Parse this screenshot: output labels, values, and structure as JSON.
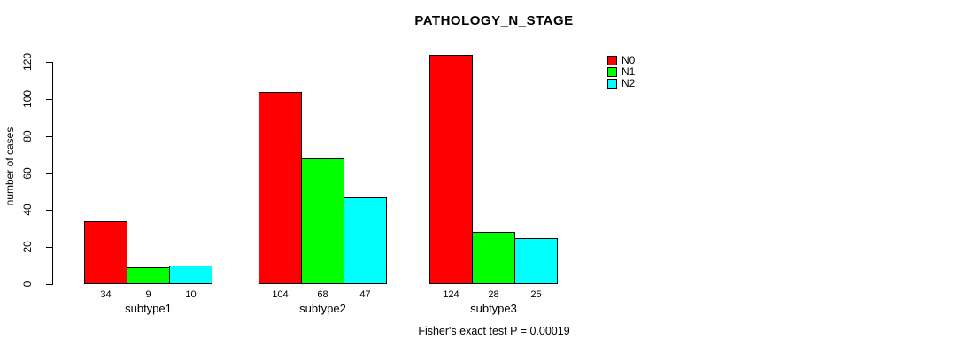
{
  "figure": {
    "title": "PATHOLOGY_N_STAGE",
    "y_axis": {
      "label": "number of cases",
      "ticks": [
        0,
        20,
        40,
        60,
        80,
        100,
        120
      ]
    },
    "footer": "Fisher's exact test P = 0.00019"
  },
  "legend": {
    "position": "right-of-plot",
    "items": [
      {
        "label": "N0",
        "color": "#FF0000"
      },
      {
        "label": "N1",
        "color": "#00FF00"
      },
      {
        "label": "N2",
        "color": "#00FFFF"
      }
    ]
  },
  "chart_data": {
    "type": "bar",
    "grouped": true,
    "title": "PATHOLOGY_N_STAGE",
    "categories": [
      "subtype1",
      "subtype2",
      "subtype3"
    ],
    "series": [
      {
        "name": "N0",
        "color": "#FF0000",
        "values": [
          34,
          104,
          124
        ]
      },
      {
        "name": "N1",
        "color": "#00FF00",
        "values": [
          9,
          68,
          28
        ]
      },
      {
        "name": "N2",
        "color": "#00FFFF",
        "values": [
          10,
          47,
          25
        ]
      }
    ],
    "xlabel": "",
    "ylabel": "number of cases",
    "yticks": [
      0,
      20,
      40,
      60,
      80,
      100,
      120
    ],
    "ylim": [
      0,
      124
    ],
    "grid": false,
    "bar_value_labels": true,
    "legend_position": "right-of-plot",
    "annotation": "Fisher's exact test P = 0.00019"
  }
}
